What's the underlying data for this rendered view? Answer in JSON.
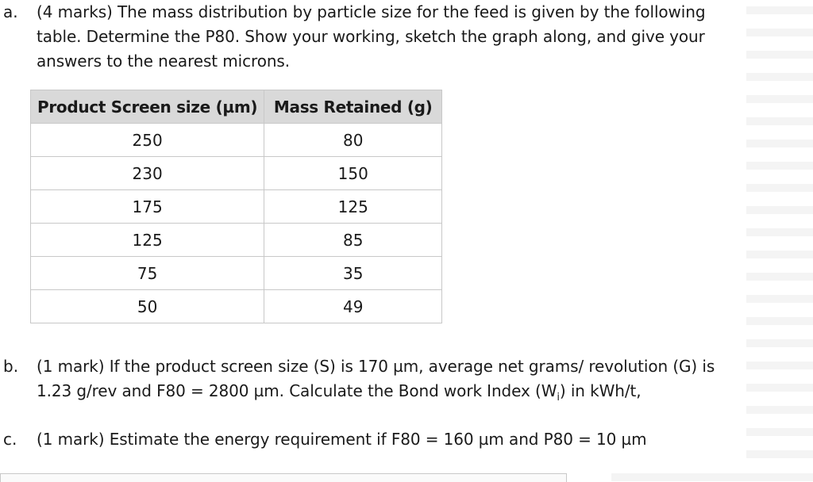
{
  "question_a": {
    "letter": "a.",
    "text": "(4 marks) The mass distribution by particle size for the feed is given by the following table. Determine the P80. Show your working, sketch the graph along, and give your answers to the nearest microns."
  },
  "table": {
    "headers": [
      "Product Screen size (µm)",
      "Mass Retained (g)"
    ],
    "rows": [
      [
        "250",
        "80"
      ],
      [
        "230",
        "150"
      ],
      [
        "175",
        "125"
      ],
      [
        "125",
        "85"
      ],
      [
        "75",
        "35"
      ],
      [
        "50",
        "49"
      ]
    ]
  },
  "question_b": {
    "letter": "b.",
    "text_before_sub": "(1 mark) If the product screen size (S) is 170 µm, average net grams/ revolution (G) is 1.23 g/rev and F80 = 2800 µm. Calculate the Bond work Index (W",
    "subscript": "i",
    "text_after_sub": ") in kWh/t,"
  },
  "question_c": {
    "letter": "c.",
    "text": "(1 mark) Estimate the energy requirement if F80 = 160 µm and P80 = 10 µm"
  }
}
